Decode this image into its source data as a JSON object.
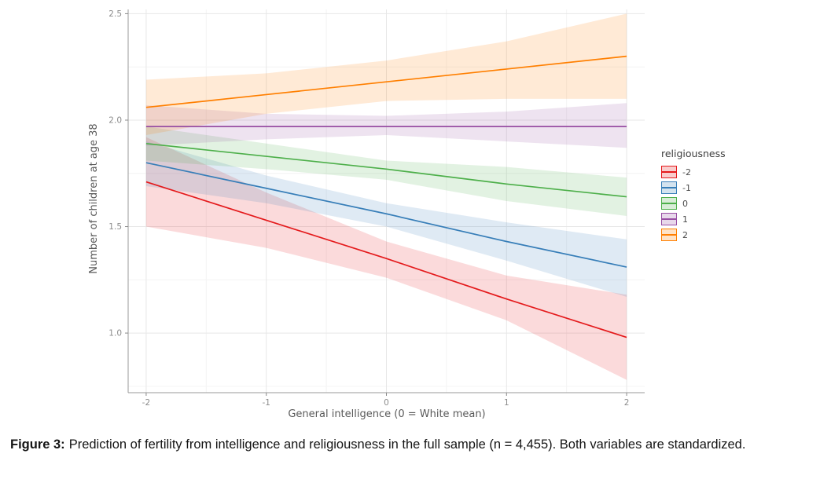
{
  "figure": {
    "caption_label": "Figure 3:",
    "caption_text": "Prediction of fertility from intelligence and religiousness in the full sample (n = 4,455). Both variables are standardized."
  },
  "chart_data": {
    "type": "line",
    "title": "",
    "xlabel": "General intelligence (0 = White mean)",
    "ylabel": "Number of children at age 38",
    "legend_title": "religiousness",
    "legend_position": "right",
    "grid": true,
    "x": [
      -2,
      -1,
      0,
      1,
      2
    ],
    "xlim": [
      -2.15,
      2.15
    ],
    "ylim": [
      0.72,
      2.52
    ],
    "x_ticks": [
      -2,
      -1,
      0,
      1,
      2
    ],
    "x_tick_labels": [
      "-2",
      "-1",
      "0",
      "1",
      "2"
    ],
    "y_ticks": [
      1.0,
      1.5,
      2.0,
      2.5
    ],
    "y_tick_labels": [
      "1.0",
      "1.5",
      "2.0",
      "2.5"
    ],
    "series": [
      {
        "name": "-2",
        "color": "#E41A1C",
        "y": [
          1.71,
          1.53,
          1.35,
          1.16,
          0.98
        ],
        "ribbon_lower": [
          1.5,
          1.4,
          1.26,
          1.06,
          0.78
        ],
        "ribbon_upper": [
          1.92,
          1.66,
          1.43,
          1.27,
          1.18
        ]
      },
      {
        "name": "-1",
        "color": "#377EB8",
        "y": [
          1.8,
          1.68,
          1.56,
          1.43,
          1.31
        ],
        "ribbon_lower": [
          1.69,
          1.61,
          1.5,
          1.34,
          1.17
        ],
        "ribbon_upper": [
          1.9,
          1.74,
          1.61,
          1.52,
          1.44
        ]
      },
      {
        "name": "0",
        "color": "#4DAF4A",
        "y": [
          1.89,
          1.83,
          1.77,
          1.7,
          1.64
        ],
        "ribbon_lower": [
          1.81,
          1.77,
          1.72,
          1.62,
          1.55
        ],
        "ribbon_upper": [
          1.97,
          1.89,
          1.81,
          1.78,
          1.73
        ]
      },
      {
        "name": "1",
        "color": "#984EA3",
        "y": [
          1.97,
          1.97,
          1.97,
          1.97,
          1.97
        ],
        "ribbon_lower": [
          1.88,
          1.91,
          1.93,
          1.9,
          1.87
        ],
        "ribbon_upper": [
          2.07,
          2.03,
          2.02,
          2.04,
          2.08
        ]
      },
      {
        "name": "2",
        "color": "#FF7F00",
        "y": [
          2.06,
          2.12,
          2.18,
          2.24,
          2.3
        ],
        "ribbon_lower": [
          1.93,
          2.03,
          2.09,
          2.1,
          2.1
        ],
        "ribbon_upper": [
          2.19,
          2.22,
          2.28,
          2.37,
          2.5
        ]
      }
    ]
  }
}
